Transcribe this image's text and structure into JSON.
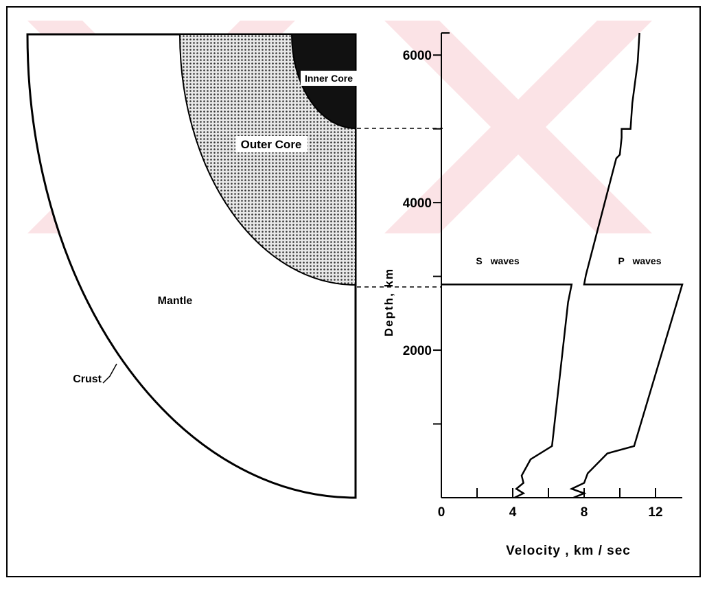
{
  "diagram": {
    "labels": {
      "inner_core": "Inner Core",
      "outer_core": "Outer Core",
      "mantle": "Mantle",
      "crust": "Crust"
    }
  },
  "chart_data": {
    "type": "line",
    "x_label": "Velocity , km / sec",
    "y_label": "Depth, km",
    "xlim": [
      0,
      13.5
    ],
    "xticks": [
      0,
      4,
      8,
      12
    ],
    "xticks_minor": [
      2,
      6,
      10
    ],
    "ylim": [
      0,
      6300
    ],
    "yticks": [
      2000,
      4000,
      6000
    ],
    "yticks_minor": [
      1000,
      3000,
      5000
    ],
    "series": [
      {
        "name": "S waves",
        "color": "#000000",
        "x": [
          4.1,
          4.6,
          4.2,
          4.6,
          4.5,
          5.0,
          6.2,
          7.1,
          7.3,
          0
        ],
        "values": [
          0,
          60,
          120,
          200,
          300,
          520,
          700,
          2650,
          2890,
          2890
        ]
      },
      {
        "name": "P waves",
        "color": "#000000",
        "x": [
          7.4,
          8.0,
          7.3,
          8.0,
          8.2,
          9.3,
          10.8,
          13.5,
          8.0,
          8.1,
          9.1,
          9.8,
          10.0,
          10.1,
          10.1,
          10.6,
          10.7,
          11.0,
          11.1
        ],
        "values": [
          0,
          60,
          120,
          200,
          330,
          600,
          700,
          2890,
          2890,
          3020,
          3950,
          4600,
          4650,
          4880,
          5000,
          5000,
          5350,
          5900,
          6300
        ]
      }
    ]
  }
}
